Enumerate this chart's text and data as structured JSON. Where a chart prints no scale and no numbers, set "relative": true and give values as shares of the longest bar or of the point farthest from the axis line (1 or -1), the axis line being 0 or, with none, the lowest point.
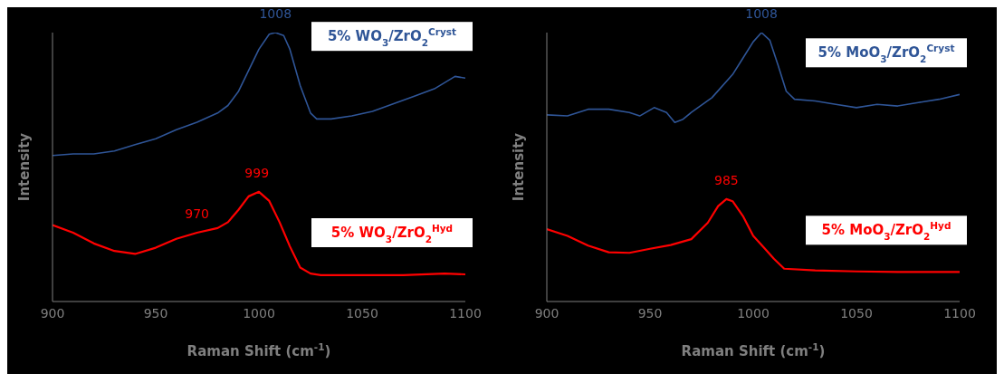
{
  "chart_data": [
    {
      "type": "line",
      "relative": true,
      "xlabel": "Raman Shift (cm$^{-1}$)",
      "ylabel": "Intensity",
      "xlim": [
        900,
        1100
      ],
      "xticks": [
        900,
        950,
        1000,
        1050,
        1100
      ],
      "grid": false,
      "marker": "none",
      "line_style": "solid",
      "legend": "right",
      "series": [
        {
          "name": "5% WO$_{3}$/ZrO$_{2}$$^{Cryst}$",
          "color": "#2f5597",
          "x": [
            900,
            910,
            920,
            930,
            940,
            950,
            960,
            970,
            980,
            985,
            990,
            995,
            1000,
            1005,
            1008,
            1012,
            1015,
            1020,
            1025,
            1028,
            1035,
            1045,
            1055,
            1065,
            1075,
            1085,
            1095,
            1100
          ],
          "values": [
            0.543,
            0.549,
            0.549,
            0.56,
            0.583,
            0.605,
            0.639,
            0.667,
            0.701,
            0.729,
            0.78,
            0.859,
            0.938,
            0.994,
            1,
            0.989,
            0.938,
            0.803,
            0.701,
            0.679,
            0.679,
            0.69,
            0.707,
            0.735,
            0.763,
            0.791,
            0.837,
            0.831
          ]
        },
        {
          "name": "5% WO$_{3}$/ZrO$_{2}$$^{Hyd}$",
          "color": "#ff0000",
          "x": [
            900,
            910,
            920,
            930,
            940,
            950,
            960,
            970,
            980,
            985,
            990,
            995,
            1000,
            1005,
            1010,
            1015,
            1020,
            1025,
            1030,
            1050,
            1070,
            1090,
            1100
          ],
          "values": [
            0.284,
            0.256,
            0.216,
            0.188,
            0.177,
            0.2,
            0.233,
            0.256,
            0.273,
            0.295,
            0.34,
            0.391,
            0.408,
            0.374,
            0.295,
            0.205,
            0.126,
            0.104,
            0.098,
            0.098,
            0.098,
            0.104,
            0.101
          ]
        }
      ],
      "annotations": [
        {
          "text": "1008",
          "x": 1008,
          "y": 1
        },
        {
          "text": "999",
          "x": 999,
          "y": 0.408
        },
        {
          "text": "970",
          "x": 970,
          "y": 0.256
        }
      ]
    },
    {
      "type": "line",
      "relative": true,
      "xlabel": "Raman Shift (cm$^{-1}$)",
      "ylabel": "Intensity",
      "xlim": [
        900,
        1100
      ],
      "xticks": [
        900,
        950,
        1000,
        1050,
        1100
      ],
      "grid": false,
      "marker": "none",
      "line_style": "solid",
      "legend": "right",
      "series": [
        {
          "name": "5% MoO$_{3}$/ZrO$_{2}$$^{Cryst}$",
          "color": "#2f5597",
          "x": [
            900,
            910,
            920,
            930,
            940,
            945,
            952,
            958,
            962,
            966,
            970,
            980,
            990,
            995,
            1000,
            1004,
            1008,
            1012,
            1016,
            1020,
            1030,
            1040,
            1050,
            1060,
            1070,
            1080,
            1090,
            1100
          ],
          "values": [
            0.694,
            0.69,
            0.715,
            0.715,
            0.703,
            0.69,
            0.721,
            0.703,
            0.666,
            0.678,
            0.703,
            0.758,
            0.844,
            0.905,
            0.966,
            1,
            0.972,
            0.88,
            0.782,
            0.752,
            0.746,
            0.733,
            0.721,
            0.733,
            0.727,
            0.74,
            0.752,
            0.77
          ]
        },
        {
          "name": "5% MoO$_{3}$/ZrO$_{2}$$^{Hyd}$",
          "color": "#ff0000",
          "x": [
            900,
            910,
            920,
            930,
            940,
            950,
            960,
            970,
            978,
            983,
            987,
            990,
            995,
            1000,
            1005,
            1010,
            1015,
            1030,
            1050,
            1070,
            1090,
            1100
          ],
          "values": [
            0.269,
            0.244,
            0.208,
            0.183,
            0.181,
            0.196,
            0.21,
            0.232,
            0.293,
            0.355,
            0.381,
            0.373,
            0.318,
            0.244,
            0.202,
            0.159,
            0.122,
            0.116,
            0.112,
            0.11,
            0.11,
            0.11
          ]
        }
      ],
      "annotations": [
        {
          "text": "1008",
          "x": 1004,
          "y": 1
        },
        {
          "text": "985",
          "x": 987,
          "y": 0.381
        }
      ]
    }
  ]
}
